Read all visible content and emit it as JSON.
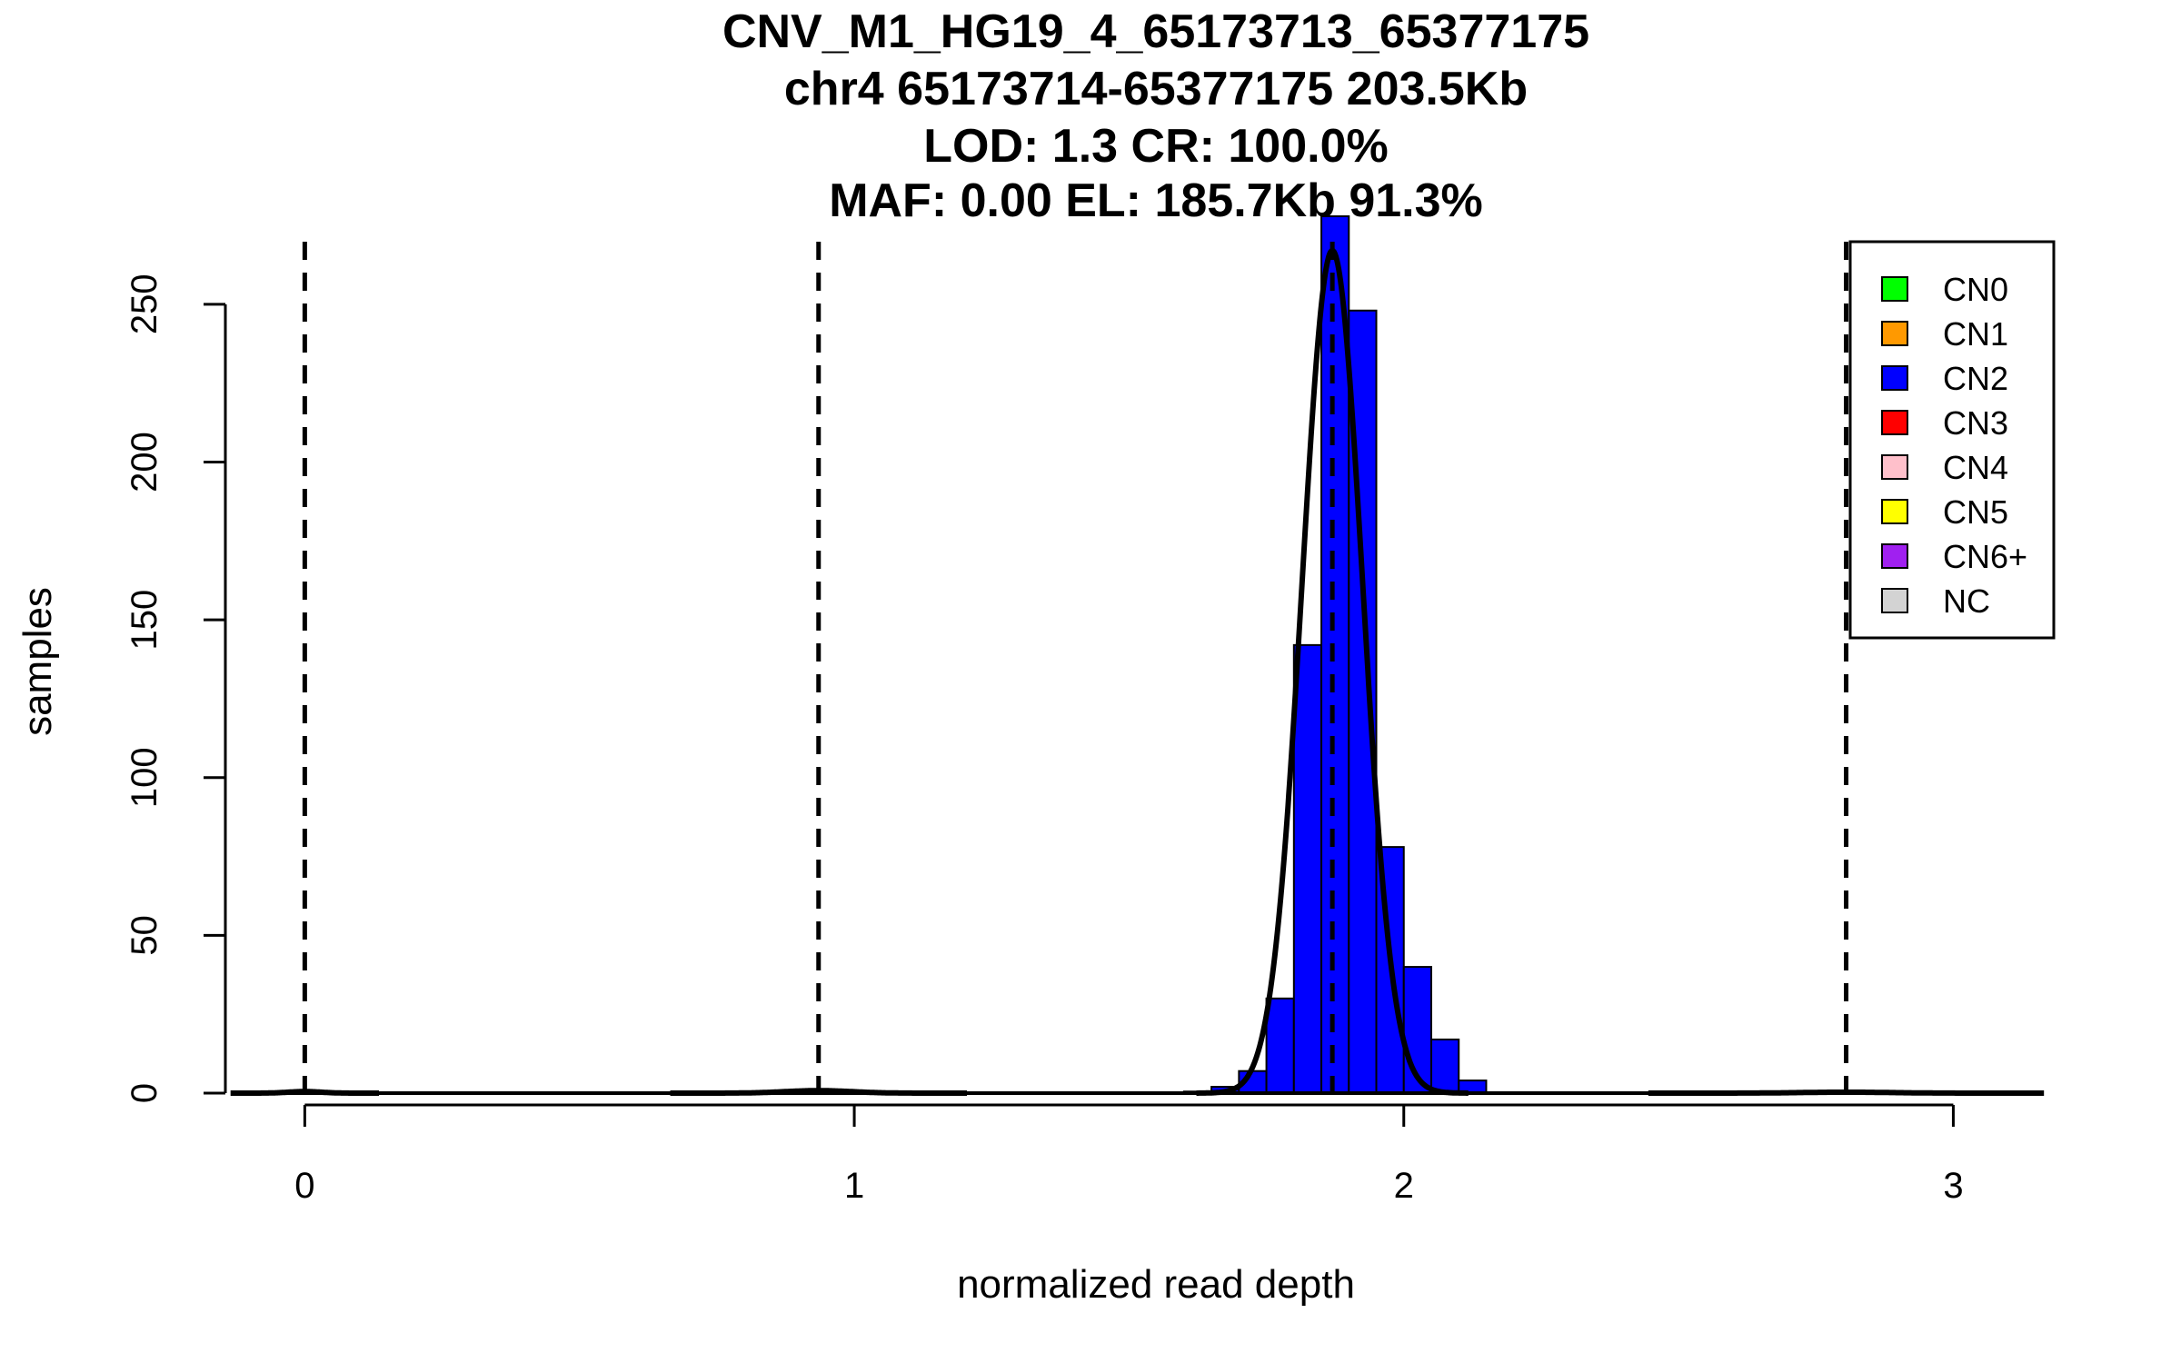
{
  "chart_data": {
    "type": "bar",
    "title_lines": [
      "CNV_M1_HG19_4_65173713_65377175",
      "chr4 65173714-65377175 203.5Kb",
      "LOD: 1.3 CR: 100.0%",
      "MAF: 0.00 EL: 185.7Kb 91.3%"
    ],
    "xlabel": "normalized read depth",
    "ylabel": "samples",
    "xlim": [
      -0.08,
      3.12
    ],
    "ylim": [
      0,
      275
    ],
    "x_ticks": [
      0,
      1,
      2,
      3
    ],
    "y_ticks": [
      0,
      50,
      100,
      150,
      200,
      250
    ],
    "bin_width": 0.05,
    "bins": [
      {
        "x0": 1.6,
        "count": 0.5
      },
      {
        "x0": 1.65,
        "count": 2
      },
      {
        "x0": 1.7,
        "count": 7
      },
      {
        "x0": 1.75,
        "count": 30
      },
      {
        "x0": 1.8,
        "count": 142
      },
      {
        "x0": 1.85,
        "count": 280
      },
      {
        "x0": 1.9,
        "count": 248
      },
      {
        "x0": 1.95,
        "count": 78
      },
      {
        "x0": 2.0,
        "count": 40
      },
      {
        "x0": 2.05,
        "count": 17
      },
      {
        "x0": 2.1,
        "count": 4
      }
    ],
    "bar_color": "#0000ff",
    "dashed_lines_x": [
      0,
      0.935,
      1.87,
      2.805
    ],
    "fit_curves": [
      {
        "mean": 1.87,
        "sd": 0.055,
        "peak": 267
      },
      {
        "mean": 0.935,
        "sd": 0.06,
        "peak": 0.8
      },
      {
        "mean": 0.0,
        "sd": 0.03,
        "peak": 0.5
      },
      {
        "mean": 2.805,
        "sd": 0.08,
        "peak": 0.3
      }
    ],
    "legend": {
      "placement": "top-right",
      "entries": [
        {
          "label": "CN0",
          "color": "#00ff00"
        },
        {
          "label": "CN1",
          "color": "#ff9900"
        },
        {
          "label": "CN2",
          "color": "#0000ff"
        },
        {
          "label": "CN3",
          "color": "#ff0000"
        },
        {
          "label": "CN4",
          "color": "#ffc0cb"
        },
        {
          "label": "CN5",
          "color": "#ffff00"
        },
        {
          "label": "CN6+",
          "color": "#a020f0"
        },
        {
          "label": "NC",
          "color": "#d3d3d3"
        }
      ]
    },
    "grid": false
  }
}
